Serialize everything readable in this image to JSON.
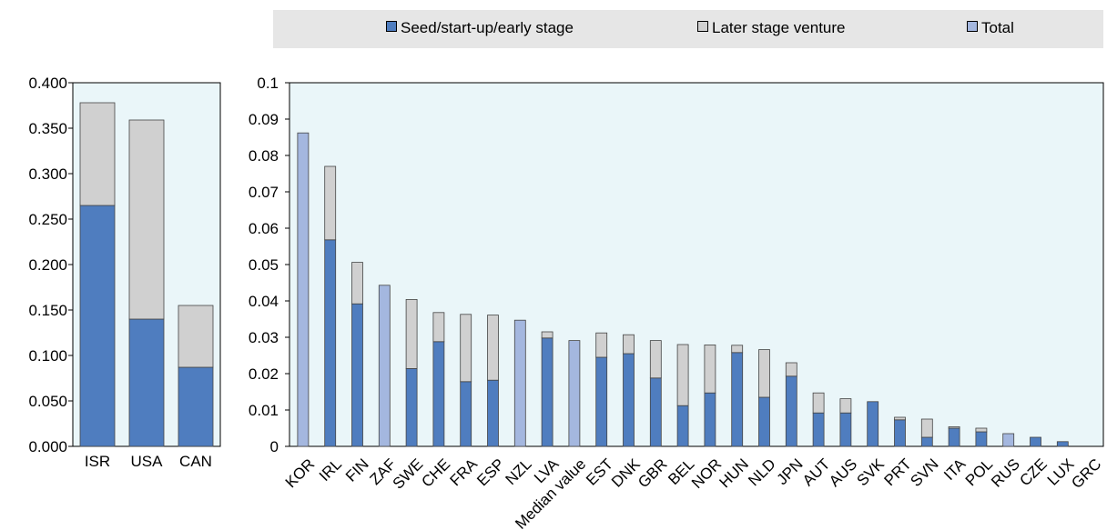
{
  "legend": {
    "seed_label": "Seed/start-up/early stage",
    "later_label": "Later stage venture",
    "total_label": "Total"
  },
  "colors": {
    "seed": "#4f7dbf",
    "later": "#d0d0d0",
    "total": "#a4b7df",
    "panel_bg": "#eaf6f9",
    "legend_bg": "#e6e6e6"
  },
  "chart_data": [
    {
      "type": "bar",
      "stacked": true,
      "categories": [
        "ISR",
        "USA",
        "CAN"
      ],
      "series": [
        {
          "name": "Seed/start-up/early stage",
          "values": [
            0.265,
            0.14,
            0.087
          ]
        },
        {
          "name": "Later stage venture",
          "values": [
            0.113,
            0.219,
            0.068
          ]
        }
      ],
      "ylim": [
        0,
        0.4
      ],
      "yticks": [
        "0.000",
        "0.050",
        "0.100",
        "0.150",
        "0.200",
        "0.250",
        "0.300",
        "0.350",
        "0.400"
      ],
      "grid": false
    },
    {
      "type": "bar",
      "stacked": true,
      "categories": [
        "KOR",
        "IRL",
        "FIN",
        "ZAF",
        "SWE",
        "CHE",
        "FRA",
        "ESP",
        "NZL",
        "LVA",
        "Median value",
        "EST",
        "DNK",
        "GBR",
        "BEL",
        "NOR",
        "HUN",
        "NLD",
        "JPN",
        "AUT",
        "AUS",
        "SVK",
        "PRT",
        "SVN",
        "ITA",
        "POL",
        "RUS",
        "CZE",
        "LUX",
        "GRC"
      ],
      "series": [
        {
          "name": "Seed/start-up/early stage",
          "values": [
            null,
            0.0568,
            0.0392,
            null,
            0.0214,
            0.0288,
            0.0178,
            0.0182,
            null,
            0.0298,
            null,
            0.0245,
            0.0255,
            0.0188,
            0.0112,
            0.0147,
            0.0258,
            0.0135,
            0.0193,
            0.0092,
            0.0092,
            0.0123,
            0.0073,
            0.0025,
            0.005,
            0.004,
            null,
            0.0025,
            0.0013,
            0
          ]
        },
        {
          "name": "Later stage venture",
          "values": [
            null,
            0.0202,
            0.0114,
            null,
            0.019,
            0.008,
            0.0185,
            0.0179,
            null,
            0.0017,
            null,
            0.0067,
            0.0052,
            0.0103,
            0.0168,
            0.0132,
            0.002,
            0.0131,
            0.0037,
            0.0055,
            0.0039,
            0.0,
            0.0007,
            0.005,
            0.0004,
            0.001,
            null,
            0.0,
            0.0,
            0
          ]
        },
        {
          "name": "Total",
          "values": [
            0.0862,
            null,
            null,
            0.0443,
            null,
            null,
            null,
            null,
            0.0347,
            null,
            0.0291,
            null,
            null,
            null,
            null,
            null,
            null,
            null,
            null,
            null,
            null,
            null,
            null,
            null,
            null,
            null,
            0.0035,
            null,
            null,
            null
          ]
        }
      ],
      "ylim": [
        0,
        0.1
      ],
      "yticks": [
        "0",
        "0.01",
        "0.02",
        "0.03",
        "0.04",
        "0.05",
        "0.06",
        "0.07",
        "0.08",
        "0.09",
        "0.1"
      ],
      "grid": false
    }
  ]
}
